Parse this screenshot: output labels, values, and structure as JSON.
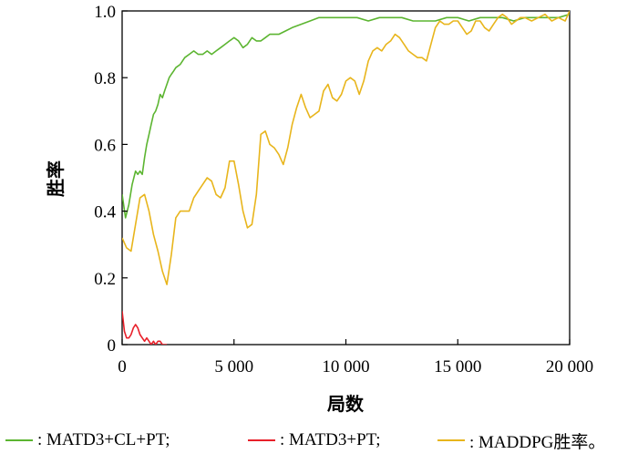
{
  "chart_data": {
    "type": "line",
    "title": "",
    "xlabel": "局数",
    "ylabel": "胜率",
    "xlim": [
      0,
      20000
    ],
    "ylim": [
      0,
      1.0
    ],
    "xticks": [
      0,
      5000,
      10000,
      15000,
      20000
    ],
    "xtick_labels": [
      "0",
      "5 000",
      "10 000",
      "15 000",
      "20 000"
    ],
    "yticks": [
      0,
      0.2,
      0.4,
      0.6,
      0.8,
      1.0
    ],
    "ytick_labels": [
      "0",
      "0.2",
      "0.4",
      "0.6",
      "0.8",
      "1.0"
    ],
    "grid": false,
    "legend_position": "bottom",
    "series": [
      {
        "name": ": MATD3+CL+PT;",
        "color": "#5cb531",
        "x": [
          0,
          150,
          300,
          450,
          600,
          700,
          800,
          900,
          1000,
          1100,
          1200,
          1300,
          1400,
          1500,
          1600,
          1700,
          1800,
          1900,
          2000,
          2100,
          2200,
          2300,
          2400,
          2600,
          2800,
          3000,
          3200,
          3400,
          3600,
          3800,
          4000,
          4200,
          4400,
          4600,
          4800,
          5000,
          5200,
          5400,
          5600,
          5800,
          6000,
          6200,
          6400,
          6600,
          6800,
          7000,
          7300,
          7600,
          8000,
          8400,
          8800,
          9200,
          9600,
          10000,
          10500,
          11000,
          11500,
          12000,
          12500,
          13000,
          13500,
          14000,
          14500,
          15000,
          15500,
          16000,
          16500,
          17000,
          17500,
          18000,
          18500,
          19000,
          19500,
          20000
        ],
        "values": [
          0.45,
          0.38,
          0.42,
          0.48,
          0.52,
          0.51,
          0.52,
          0.51,
          0.56,
          0.6,
          0.63,
          0.66,
          0.69,
          0.7,
          0.72,
          0.75,
          0.74,
          0.76,
          0.78,
          0.8,
          0.81,
          0.82,
          0.83,
          0.84,
          0.86,
          0.87,
          0.88,
          0.87,
          0.87,
          0.88,
          0.87,
          0.88,
          0.89,
          0.9,
          0.91,
          0.92,
          0.91,
          0.89,
          0.9,
          0.92,
          0.91,
          0.91,
          0.92,
          0.93,
          0.93,
          0.93,
          0.94,
          0.95,
          0.96,
          0.97,
          0.98,
          0.98,
          0.98,
          0.98,
          0.98,
          0.97,
          0.98,
          0.98,
          0.98,
          0.97,
          0.97,
          0.97,
          0.98,
          0.98,
          0.97,
          0.98,
          0.98,
          0.98,
          0.97,
          0.98,
          0.98,
          0.98,
          0.98,
          0.99
        ]
      },
      {
        "name": ": MATD3+PT;",
        "color": "#e8202a",
        "x": [
          0,
          100,
          200,
          300,
          400,
          500,
          600,
          700,
          800,
          900,
          1000,
          1100,
          1200,
          1300,
          1400,
          1500,
          1600,
          1700,
          1800,
          1900,
          2000
        ],
        "values": [
          0.1,
          0.04,
          0.02,
          0.02,
          0.03,
          0.05,
          0.06,
          0.05,
          0.03,
          0.02,
          0.01,
          0.02,
          0.01,
          0.0,
          0.01,
          0.0,
          0.01,
          0.01,
          0.0,
          0.0,
          0.0
        ]
      },
      {
        "name": ": MADDPG胜率。",
        "color": "#e8b51c",
        "x": [
          0,
          200,
          400,
          600,
          800,
          1000,
          1200,
          1400,
          1600,
          1800,
          2000,
          2200,
          2400,
          2600,
          2800,
          3000,
          3200,
          3400,
          3600,
          3800,
          4000,
          4200,
          4400,
          4600,
          4800,
          5000,
          5200,
          5400,
          5600,
          5800,
          6000,
          6200,
          6400,
          6600,
          6800,
          7000,
          7200,
          7400,
          7600,
          7800,
          8000,
          8200,
          8400,
          8600,
          8800,
          9000,
          9200,
          9400,
          9600,
          9800,
          10000,
          10200,
          10400,
          10600,
          10800,
          11000,
          11200,
          11400,
          11600,
          11800,
          12000,
          12200,
          12400,
          12600,
          12800,
          13000,
          13200,
          13400,
          13600,
          13800,
          14000,
          14200,
          14400,
          14600,
          14800,
          15000,
          15200,
          15400,
          15600,
          15800,
          16000,
          16200,
          16400,
          16600,
          16800,
          17000,
          17200,
          17400,
          17600,
          17800,
          18000,
          18300,
          18600,
          18900,
          19200,
          19500,
          19800,
          20000
        ],
        "values": [
          0.32,
          0.29,
          0.28,
          0.36,
          0.44,
          0.45,
          0.4,
          0.33,
          0.28,
          0.22,
          0.18,
          0.27,
          0.38,
          0.4,
          0.4,
          0.4,
          0.44,
          0.46,
          0.48,
          0.5,
          0.49,
          0.45,
          0.44,
          0.47,
          0.55,
          0.55,
          0.48,
          0.4,
          0.35,
          0.36,
          0.45,
          0.63,
          0.64,
          0.6,
          0.59,
          0.57,
          0.54,
          0.59,
          0.66,
          0.71,
          0.75,
          0.71,
          0.68,
          0.69,
          0.7,
          0.76,
          0.78,
          0.74,
          0.73,
          0.75,
          0.79,
          0.8,
          0.79,
          0.75,
          0.79,
          0.85,
          0.88,
          0.89,
          0.88,
          0.9,
          0.91,
          0.93,
          0.92,
          0.9,
          0.88,
          0.87,
          0.86,
          0.86,
          0.85,
          0.9,
          0.95,
          0.97,
          0.96,
          0.96,
          0.97,
          0.97,
          0.95,
          0.93,
          0.94,
          0.97,
          0.97,
          0.95,
          0.94,
          0.96,
          0.98,
          0.99,
          0.98,
          0.96,
          0.97,
          0.98,
          0.98,
          0.97,
          0.98,
          0.99,
          0.97,
          0.98,
          0.97,
          1.0
        ]
      }
    ]
  }
}
